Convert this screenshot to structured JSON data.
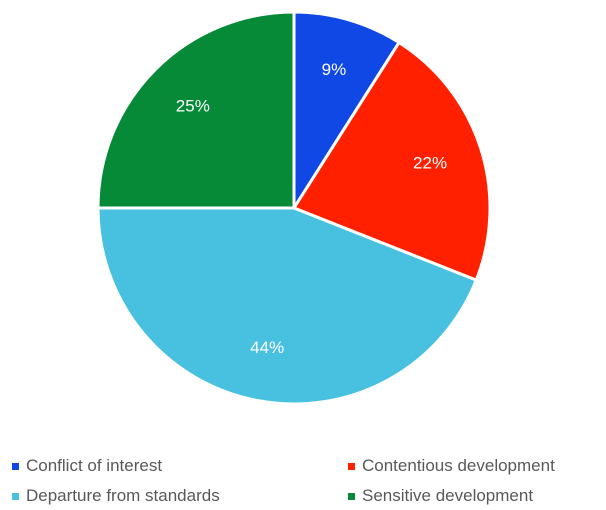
{
  "chart_data": {
    "type": "pie",
    "slices": [
      {
        "name": "Conflict of interest",
        "value": 9,
        "label": "9%",
        "color": "#1048e6"
      },
      {
        "name": "Contentious development",
        "value": 22,
        "label": "22%",
        "color": "#ff2000"
      },
      {
        "name": "Departure from standards",
        "value": 44,
        "label": "44%",
        "color": "#48c0e0"
      },
      {
        "name": "Sensitive development",
        "value": 25,
        "label": "25%",
        "color": "#068a38"
      }
    ],
    "legend_position": "bottom"
  }
}
